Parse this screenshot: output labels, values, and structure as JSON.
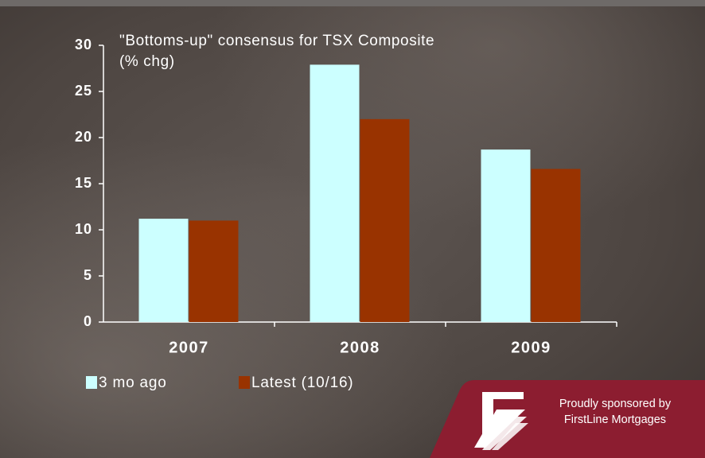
{
  "chart_data": {
    "type": "bar",
    "title": "\"Bottoms-up\" consensus for TSX Composite",
    "y_label": "(% chg)",
    "categories": [
      "2007",
      "2008",
      "2009"
    ],
    "series": [
      {
        "name": "3 mo ago",
        "color": "#ccffff",
        "values": [
          11.2,
          27.9,
          18.7
        ]
      },
      {
        "name": "Latest (10/16)",
        "color": "#993300",
        "values": [
          11.0,
          22.0,
          16.6
        ]
      }
    ],
    "ylim": [
      0,
      30
    ],
    "yticks": [
      0,
      5,
      10,
      15,
      20,
      25,
      30
    ],
    "grid": false,
    "legend": "bottom-left"
  },
  "sponsor": [
    "Proudly sponsored by",
    "FirstLine Mortgages"
  ]
}
